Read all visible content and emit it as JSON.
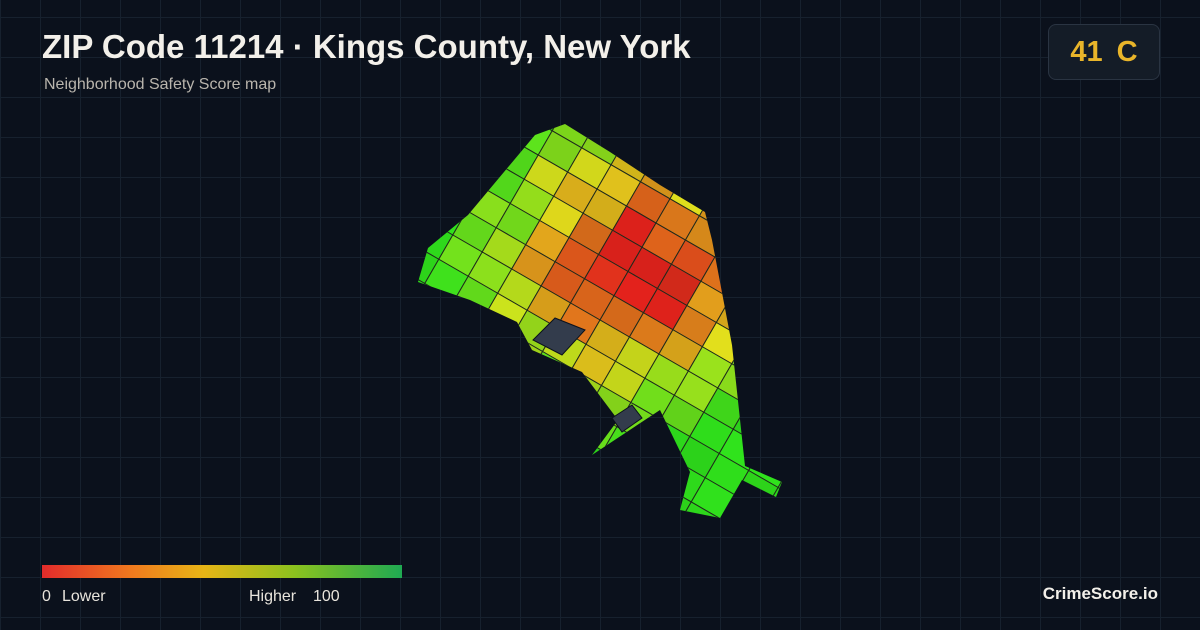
{
  "header": {
    "title": "ZIP Code 11214 · Kings County, New York",
    "subtitle": "Neighborhood Safety Score map"
  },
  "score": {
    "value": 41,
    "grade": "C"
  },
  "legend": {
    "min": 0,
    "low_label": "Lower",
    "high_label": "Higher",
    "max": 100
  },
  "brand": "CrimeScore.io"
}
